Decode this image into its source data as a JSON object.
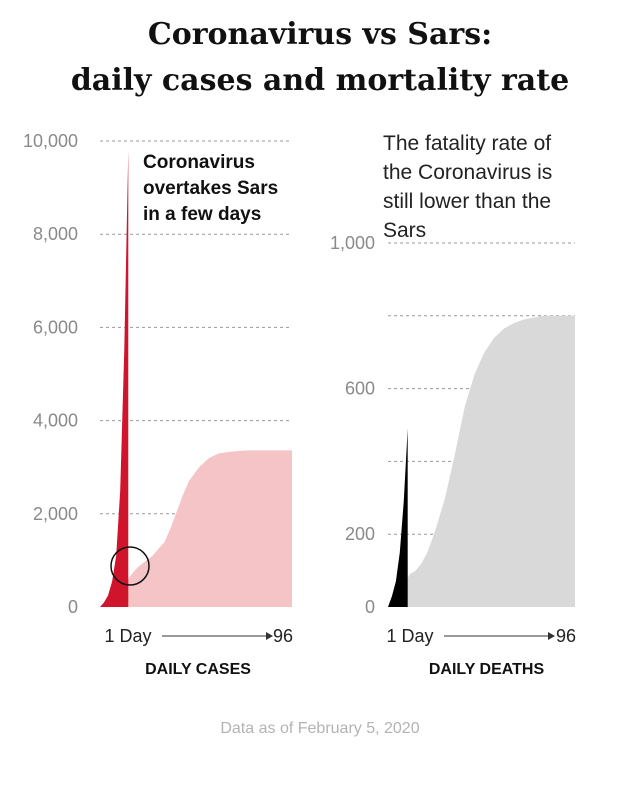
{
  "page": {
    "title_line1": "Coronavirus vs Sars:",
    "title_line2": "daily cases and mortality rate",
    "footer": "Data as of February 5, 2020"
  },
  "colors": {
    "coronavirus_cases": "#d0142c",
    "sars_cases": "#f4c4c7",
    "coronavirus_deaths": "#000000",
    "sars_deaths": "#d9d9d9",
    "gridline": "#999999",
    "tick_label": "#8a8a8a"
  },
  "chart_data": [
    {
      "type": "area",
      "xlabel": "DAILY CASES",
      "x_start_label": "1 Day",
      "x_end_label": "96",
      "xlim": [
        1,
        96
      ],
      "ylim": [
        0,
        10000
      ],
      "yticks": [
        0,
        2000,
        4000,
        6000,
        8000,
        10000
      ],
      "ytick_labels": [
        "0",
        "2,000",
        "4,000",
        "6,000",
        "8,000",
        "10,000"
      ],
      "grid": true,
      "annotation": "Coronavirus overtakes Sars in a few days",
      "annotation_lines": [
        "Coronavirus",
        "overtakes Sars",
        "in a few days"
      ],
      "series": [
        {
          "x": [
            1,
            4,
            7,
            10,
            12,
            15,
            18,
            21,
            24,
            27,
            30,
            33,
            36,
            39,
            42,
            45,
            50,
            55,
            60,
            65,
            70,
            75,
            80,
            85,
            90,
            96
          ],
          "values": [
            0,
            60,
            150,
            280,
            420,
            600,
            780,
            900,
            1000,
            1100,
            1250,
            1400,
            1700,
            2050,
            2400,
            2700,
            3000,
            3200,
            3300,
            3330,
            3350,
            3360,
            3360,
            3360,
            3360,
            3360
          ]
        },
        {
          "x": [
            1,
            3,
            5,
            7,
            9,
            11,
            13,
            15
          ],
          "values": [
            0,
            100,
            250,
            550,
            1100,
            2500,
            5500,
            9800
          ]
        }
      ]
    },
    {
      "type": "area",
      "xlabel": "DAILY DEATHS",
      "x_start_label": "1 Day",
      "x_end_label": "96",
      "xlim": [
        1,
        96
      ],
      "ylim": [
        0,
        1000
      ],
      "yticks": [
        0,
        200,
        400,
        600,
        800,
        1000
      ],
      "ytick_labels": [
        "0",
        "200",
        "",
        "600",
        "",
        "1,000"
      ],
      "grid": true,
      "annotation": "The fatality rate of the Coronavirus is still lower than the Sars",
      "annotation_lines": [
        "The fatality rate of",
        "the Coronavirus is",
        "still lower than the",
        "Sars"
      ],
      "series": [
        {
          "x": [
            1,
            5,
            10,
            12,
            15,
            18,
            21,
            25,
            30,
            35,
            40,
            45,
            50,
            55,
            60,
            65,
            70,
            75,
            80,
            85,
            90,
            96
          ],
          "values": [
            0,
            30,
            70,
            90,
            100,
            120,
            150,
            210,
            300,
            420,
            550,
            640,
            700,
            740,
            765,
            780,
            790,
            795,
            800,
            800,
            800,
            800
          ]
        },
        {
          "x": [
            1,
            3,
            5,
            7,
            9,
            11
          ],
          "values": [
            0,
            30,
            70,
            150,
            290,
            490
          ]
        }
      ]
    }
  ]
}
